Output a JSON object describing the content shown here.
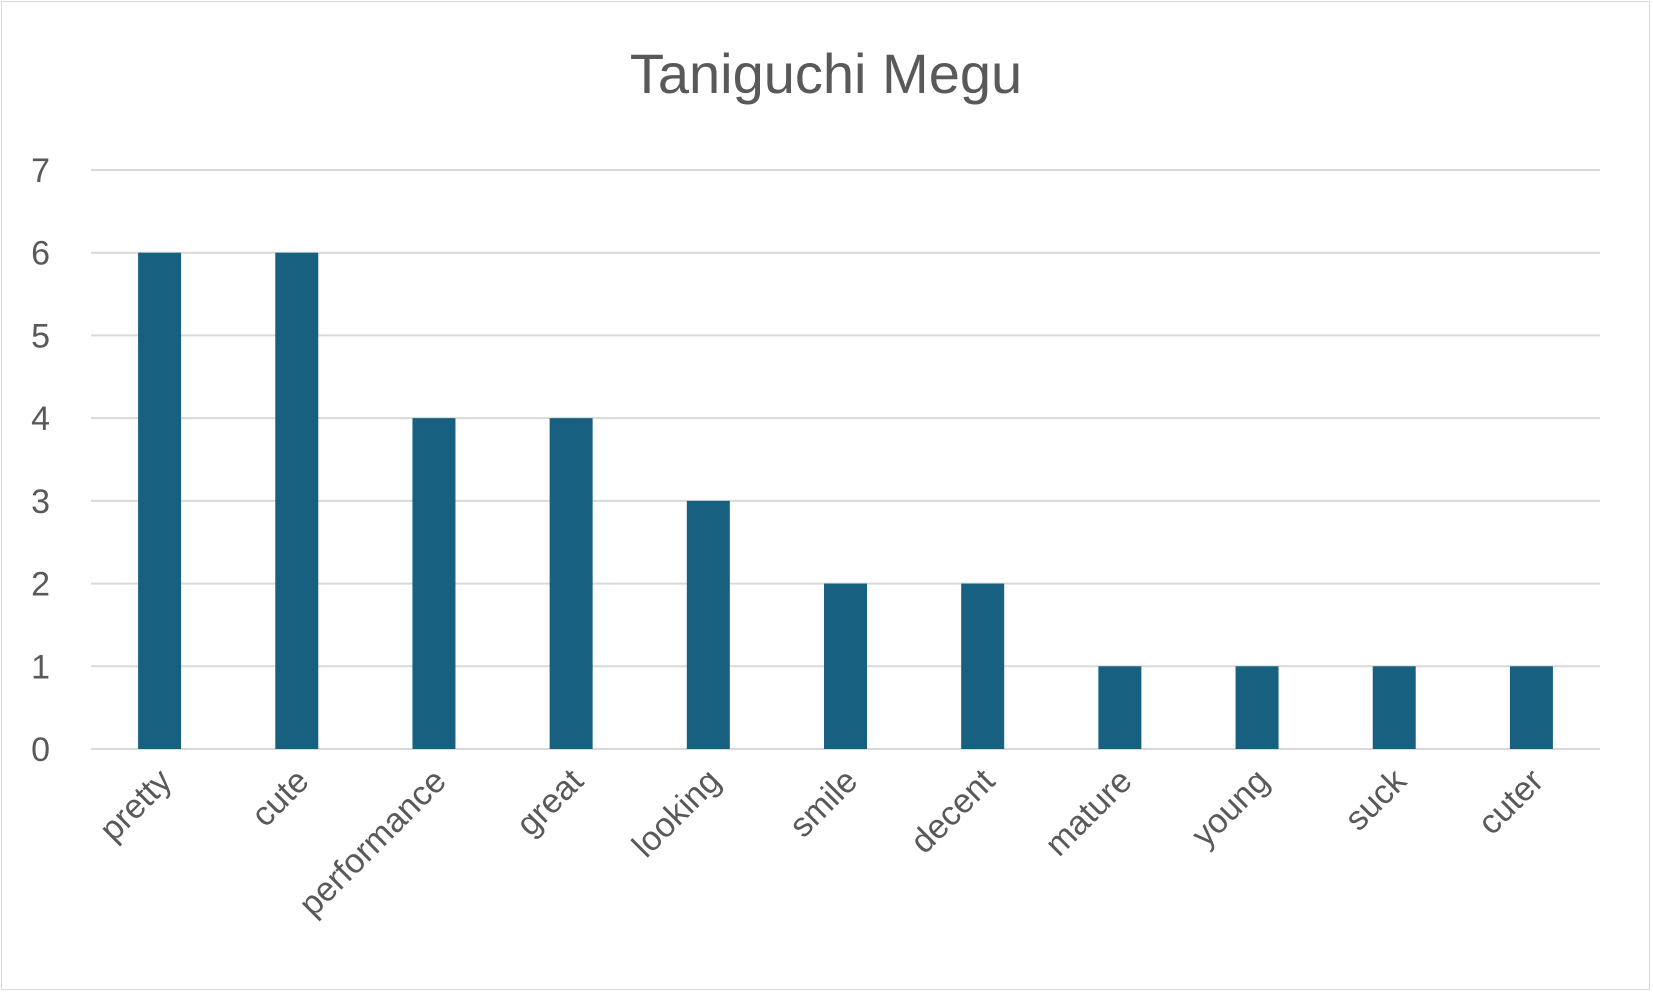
{
  "chart_data": {
    "type": "bar",
    "title": "Taniguchi Megu",
    "categories": [
      "pretty",
      "cute",
      "performance",
      "great",
      "looking",
      "smile",
      "decent",
      "mature",
      "young",
      "suck",
      "cuter"
    ],
    "values": [
      6,
      6,
      4,
      4,
      3,
      2,
      2,
      1,
      1,
      1,
      1
    ],
    "xlabel": "",
    "ylabel": "",
    "ylim": [
      0,
      7
    ],
    "yticks": [
      "0",
      "1",
      "2",
      "3",
      "4",
      "5",
      "6",
      "7"
    ],
    "grid": true,
    "legend": "none",
    "bar_color": "#17607f"
  }
}
